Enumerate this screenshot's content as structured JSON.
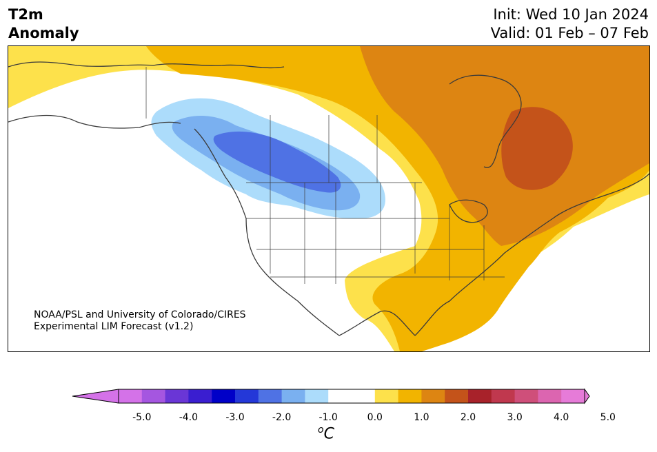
{
  "title": {
    "line1": "T2m",
    "line2": "Anomaly"
  },
  "init": {
    "line1": "Init: Wed 10 Jan 2024",
    "line2": "Valid: 01 Feb – 07 Feb"
  },
  "credit": {
    "line1": "NOAA/PSL and University of Colorado/CIRES",
    "line2": "Experimental LIM Forecast (v1.2)"
  },
  "colorbar": {
    "unit_base": "C",
    "unit_sup": "o",
    "ticks": [
      "-5.0",
      "-4.0",
      "-3.0",
      "-2.0",
      "-1.0",
      "0.0",
      "1.0",
      "2.0",
      "3.0",
      "4.0",
      "5.0"
    ],
    "colors": [
      "#d472e8",
      "#a556e0",
      "#6a36d6",
      "#3a1ed0",
      "#0000c8",
      "#2438d8",
      "#4f72e4",
      "#7ab0f0",
      "#acdcfb",
      "#ffffff",
      "#ffffff",
      "#fde14b",
      "#f2b400",
      "#dd8512",
      "#c4531a",
      "#a8222a",
      "#c0384e",
      "#cf4f7a",
      "#dc65b0",
      "#e67bd8"
    ],
    "under_color": "#d472e8",
    "over_color": "#e67bd8"
  },
  "legend_colors": {
    "cold_weak": "#acdcfb",
    "cold_mid": "#7ab0f0",
    "cold_strong": "#4f72e4",
    "warm_weak": "#fde14b",
    "warm_mid": "#f2b400",
    "warm_strong": "#dd8512",
    "warm_max": "#c4531a"
  }
}
